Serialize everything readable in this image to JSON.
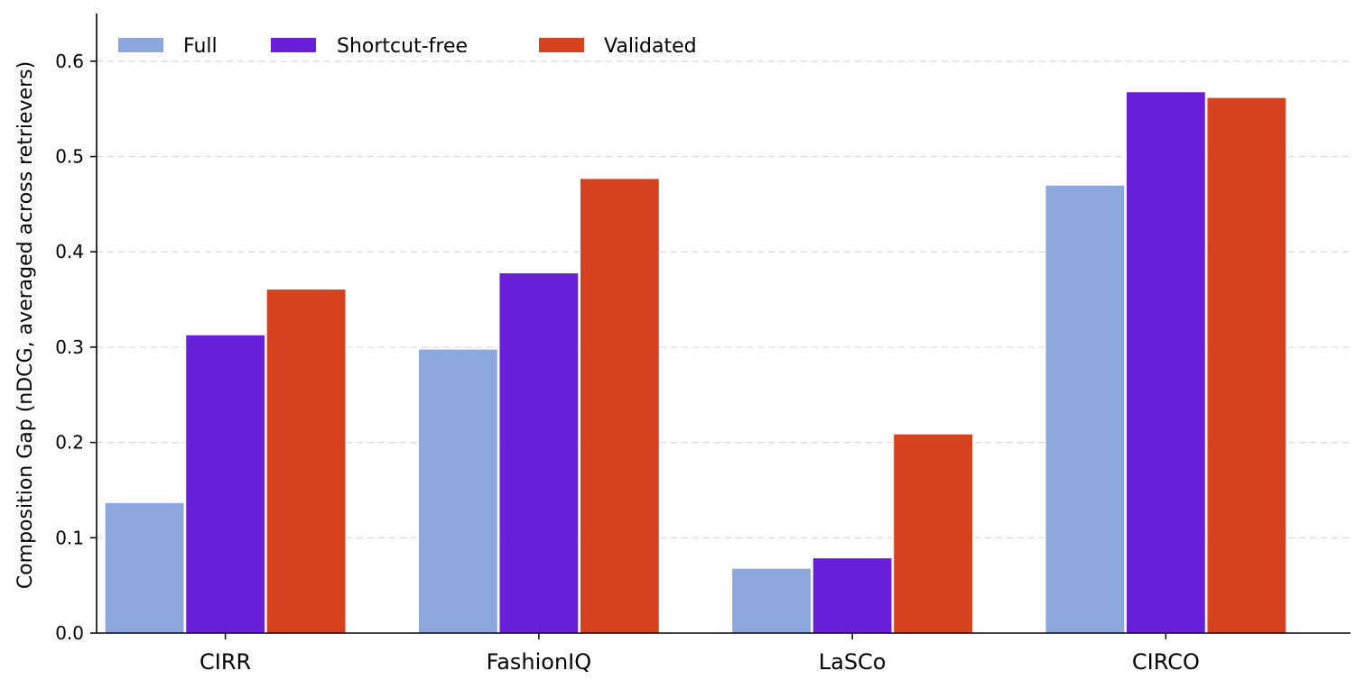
{
  "chart_data": {
    "type": "bar",
    "categories": [
      "CIRR",
      "FashionIQ",
      "LaSCo",
      "CIRCO"
    ],
    "series": [
      {
        "name": "Full",
        "color": "#8ba7dc",
        "values": [
          0.137,
          0.298,
          0.068,
          0.47
        ]
      },
      {
        "name": "Shortcut-free",
        "color": "#6a1fd8",
        "values": [
          0.313,
          0.378,
          0.079,
          0.568
        ]
      },
      {
        "name": "Validated",
        "color": "#d6421e",
        "values": [
          0.361,
          0.477,
          0.209,
          0.562
        ]
      }
    ],
    "title": "",
    "xlabel": "",
    "ylabel": "Composition Gap (nDCG, averaged across retrievers)",
    "ylim": [
      0.0,
      0.65
    ],
    "yticks": [
      "0.0",
      "0.1",
      "0.2",
      "0.3",
      "0.4",
      "0.5",
      "0.6"
    ],
    "grid": "y-dashed",
    "legend_position": "top-left"
  }
}
